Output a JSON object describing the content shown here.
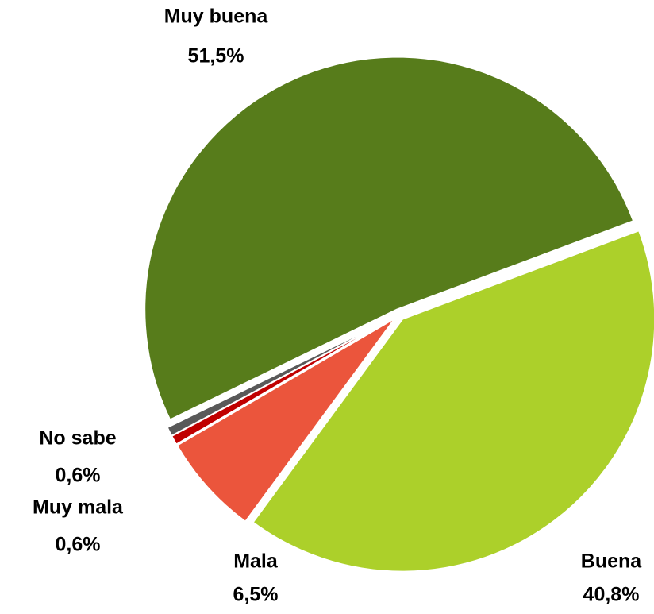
{
  "chart_data": {
    "type": "pie",
    "categories": [
      "Muy buena",
      "Buena",
      "Mala",
      "Muy mala",
      "No sabe"
    ],
    "values": [
      51.5,
      40.8,
      6.5,
      0.6,
      0.6
    ],
    "value_labels": [
      "51,5%",
      "40,8%",
      "6,5%",
      "0,6%",
      "0,6%"
    ],
    "colors": [
      "#577c1b",
      "#acd02a",
      "#eb553c",
      "#c00000",
      "#595959"
    ]
  }
}
